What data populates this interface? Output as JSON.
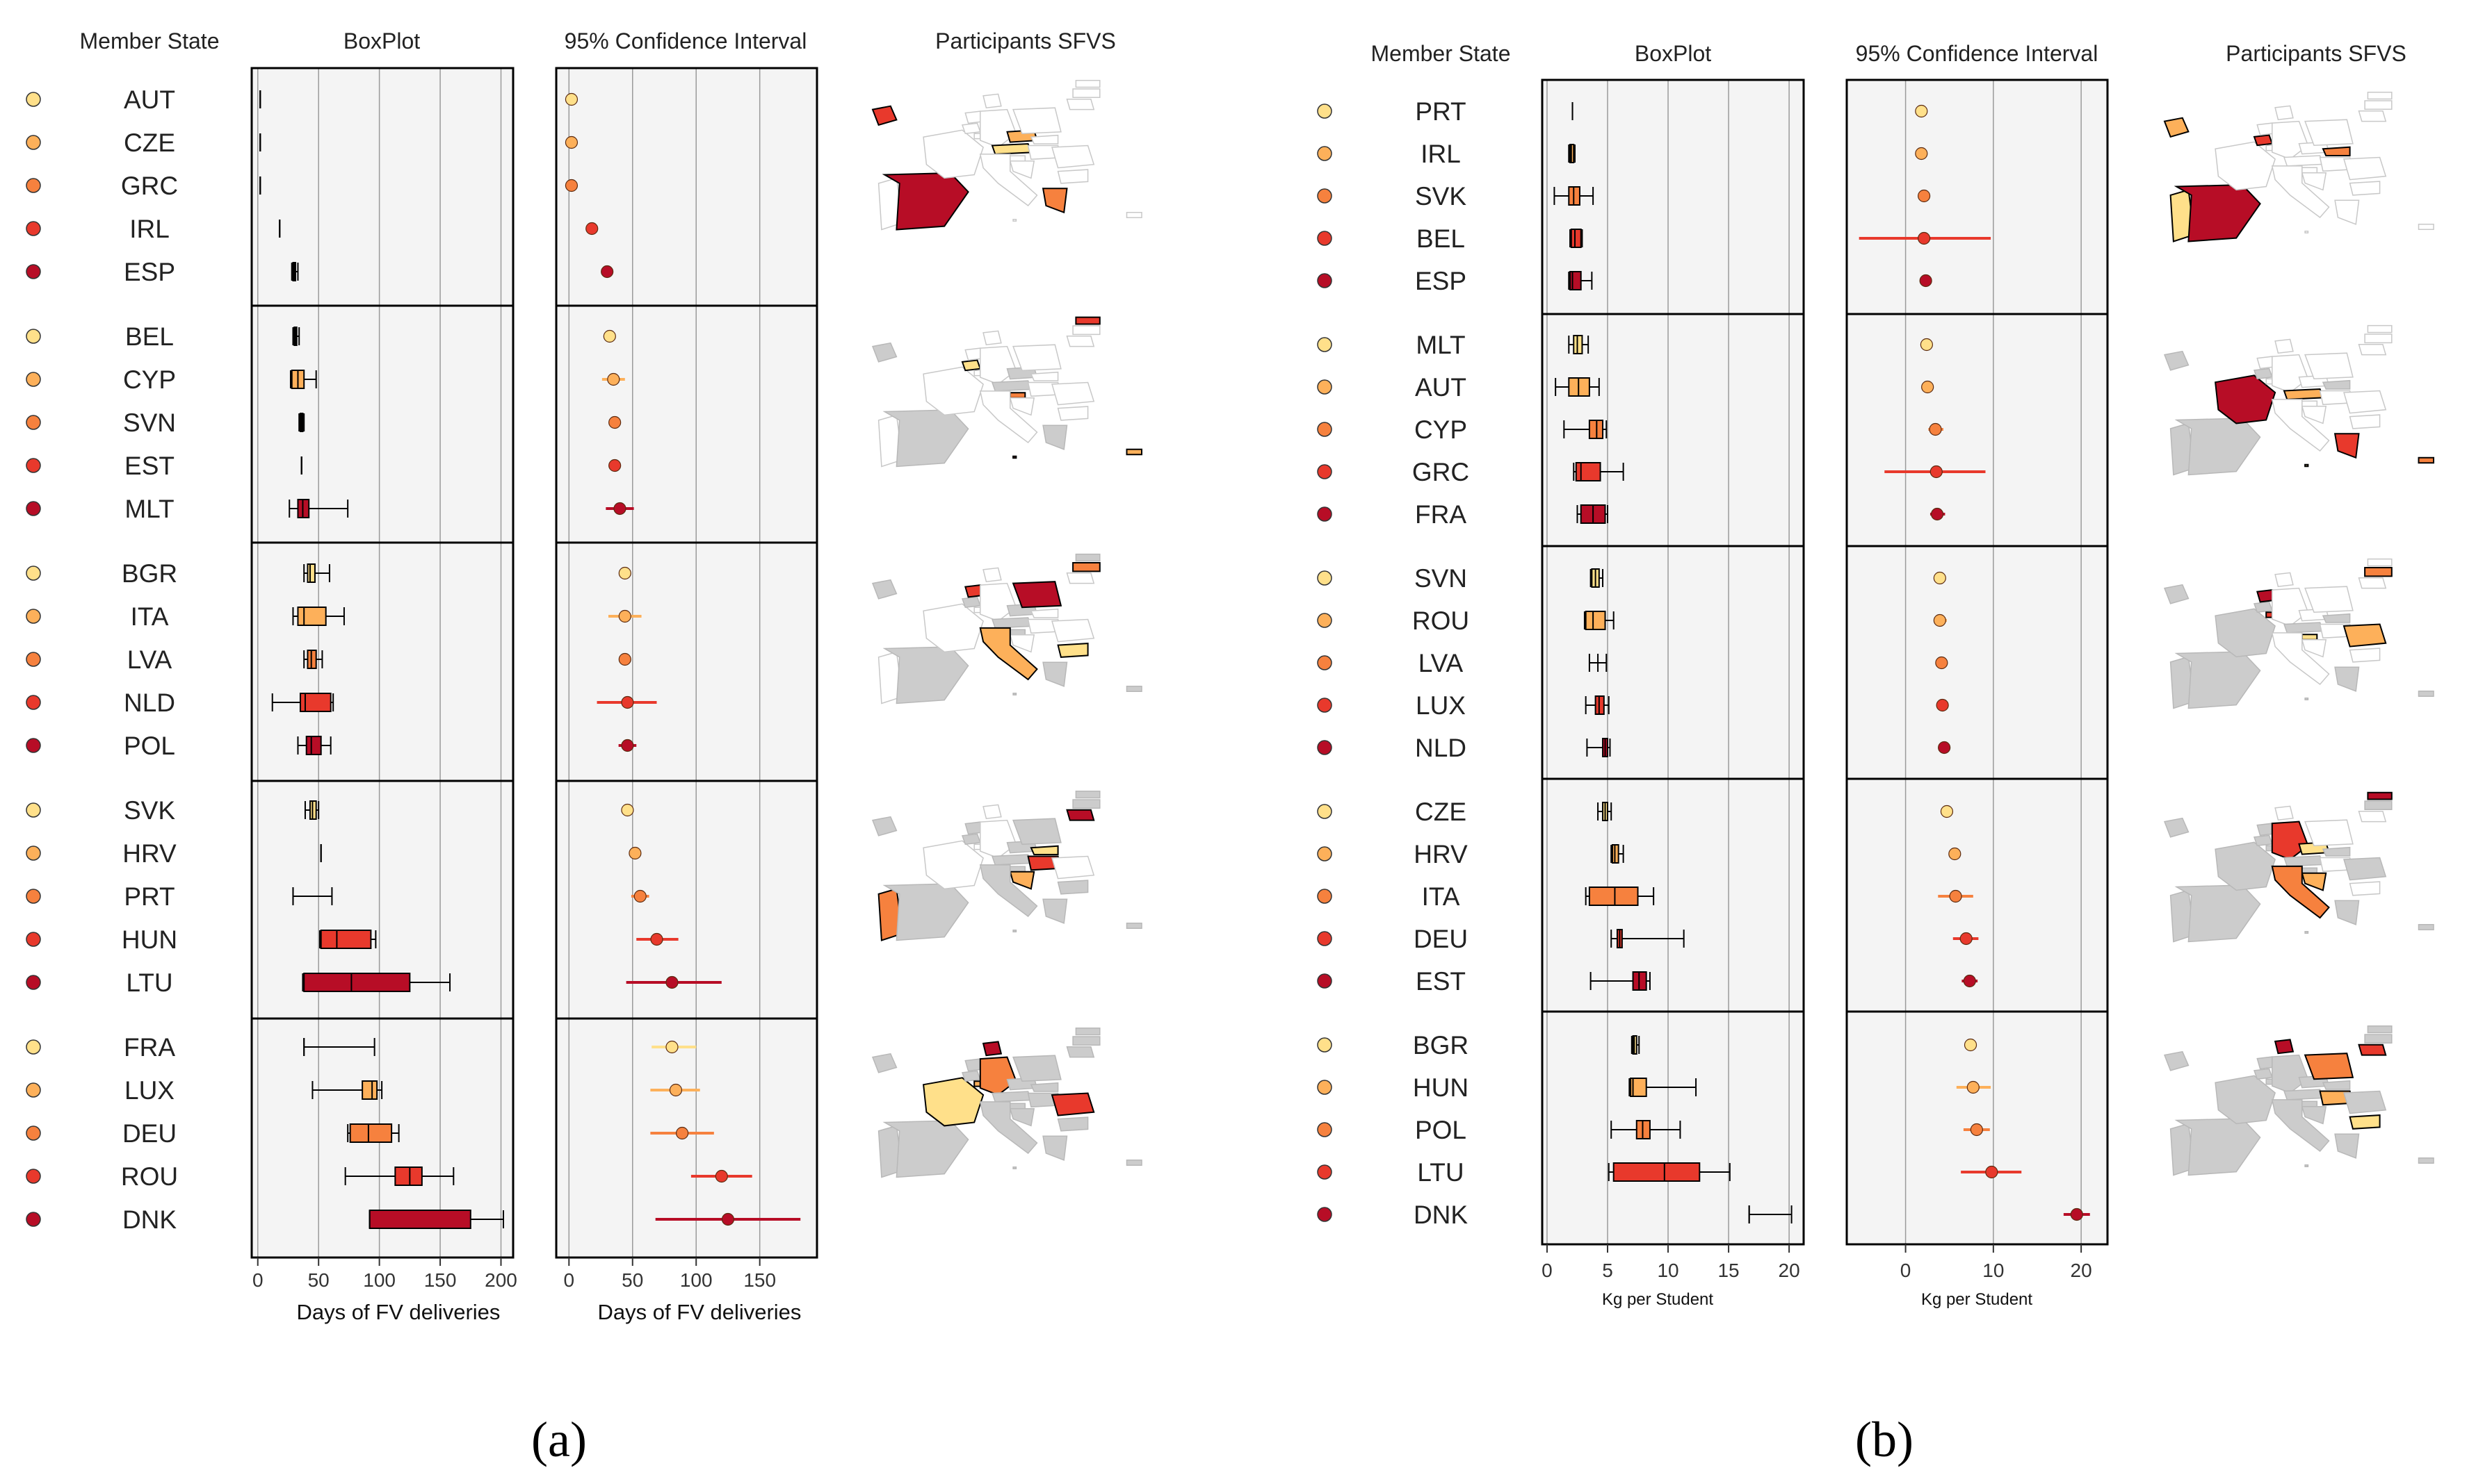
{
  "figure_labels": [
    "(a)",
    "(b)"
  ],
  "colors": {
    "ramp": [
      "#ffe08a",
      "#fdb05a",
      "#f6813e",
      "#e8392c",
      "#b70d26"
    ],
    "grey": "#cccccc",
    "panel_bg": "#f4f4f4",
    "grid": "#9a9a9a",
    "border": "#000000"
  },
  "headers": {
    "member_state": "Member State",
    "boxplot": "BoxPlot",
    "ci": "95% Confidence Interval",
    "participants": "Participants SFVS"
  },
  "chart_data": [
    {
      "type": "boxplot",
      "panel": "(a)",
      "title": "BoxPlot",
      "xlabel": "Days of FV deliveries",
      "xlim": [
        -5,
        210
      ],
      "ticks": [
        0,
        50,
        100,
        150,
        200
      ],
      "groups": [
        [
          {
            "state": "AUT",
            "min": 2,
            "q1": 2,
            "med": 2,
            "q3": 2,
            "max": 2
          },
          {
            "state": "CZE",
            "min": 2,
            "q1": 2,
            "med": 2,
            "q3": 2,
            "max": 2
          },
          {
            "state": "GRC",
            "min": 2,
            "q1": 2,
            "med": 2,
            "q3": 2,
            "max": 2
          },
          {
            "state": "IRL",
            "min": 18,
            "q1": 18,
            "med": 18,
            "q3": 18,
            "max": 18
          },
          {
            "state": "ESP",
            "min": 28,
            "q1": 29,
            "med": 30,
            "q3": 31,
            "max": 33
          }
        ],
        [
          {
            "state": "BEL",
            "min": 29,
            "q1": 30,
            "med": 31,
            "q3": 32,
            "max": 34
          },
          {
            "state": "CYP",
            "min": 27,
            "q1": 28,
            "med": 33,
            "q3": 38,
            "max": 48
          },
          {
            "state": "SVN",
            "min": 34,
            "q1": 35,
            "med": 36,
            "q3": 37,
            "max": 38
          },
          {
            "state": "EST",
            "min": 36,
            "q1": 36,
            "med": 36,
            "q3": 36,
            "max": 36
          },
          {
            "state": "MLT",
            "min": 26,
            "q1": 33,
            "med": 37,
            "q3": 42,
            "max": 74
          }
        ],
        [
          {
            "state": "BGR",
            "min": 38,
            "q1": 41,
            "med": 43,
            "q3": 47,
            "max": 59
          },
          {
            "state": "ITA",
            "min": 29,
            "q1": 33,
            "med": 38,
            "q3": 56,
            "max": 71
          },
          {
            "state": "LVA",
            "min": 38,
            "q1": 41,
            "med": 44,
            "q3": 48,
            "max": 53
          },
          {
            "state": "NLD",
            "min": 12,
            "q1": 35,
            "med": 39,
            "q3": 60,
            "max": 62
          },
          {
            "state": "POL",
            "min": 33,
            "q1": 40,
            "med": 44,
            "q3": 52,
            "max": 60
          }
        ],
        [
          {
            "state": "SVK",
            "min": 39,
            "q1": 43,
            "med": 45,
            "q3": 48,
            "max": 50
          },
          {
            "state": "HRV",
            "min": 52,
            "q1": 52,
            "med": 52,
            "q3": 52,
            "max": 52
          },
          {
            "state": "PRT",
            "min": 29,
            "q1": 29,
            "med": 29,
            "q3": 29,
            "max": 61
          },
          {
            "state": "HUN",
            "min": 51,
            "q1": 52,
            "med": 65,
            "q3": 93,
            "max": 97
          },
          {
            "state": "LTU",
            "min": 37,
            "q1": 38,
            "med": 77,
            "q3": 125,
            "max": 158
          }
        ],
        [
          {
            "state": "FRA",
            "min": 38,
            "q1": 38,
            "med": 38,
            "q3": 38,
            "max": 96
          },
          {
            "state": "LUX",
            "min": 45,
            "q1": 86,
            "med": 94,
            "q3": 98,
            "max": 102
          },
          {
            "state": "DEU",
            "min": 74,
            "q1": 76,
            "med": 91,
            "q3": 110,
            "max": 116
          },
          {
            "state": "ROU",
            "min": 72,
            "q1": 113,
            "med": 125,
            "q3": 135,
            "max": 161
          },
          {
            "state": "DNK",
            "min": 92,
            "q1": 92,
            "med": 92,
            "q3": 175,
            "max": 202
          }
        ]
      ]
    },
    {
      "type": "forest",
      "panel": "(a)",
      "title": "95% Confidence Interval",
      "xlabel": "Days of FV deliveries",
      "xlim": [
        -10,
        195
      ],
      "ticks": [
        0,
        50,
        100,
        150
      ],
      "groups": [
        [
          {
            "state": "AUT",
            "mean": 2,
            "lo": 2,
            "hi": 2
          },
          {
            "state": "CZE",
            "mean": 2,
            "lo": 2,
            "hi": 2
          },
          {
            "state": "GRC",
            "mean": 2,
            "lo": 2,
            "hi": 2
          },
          {
            "state": "IRL",
            "mean": 18,
            "lo": 18,
            "hi": 18
          },
          {
            "state": "ESP",
            "mean": 30,
            "lo": 29,
            "hi": 31
          }
        ],
        [
          {
            "state": "BEL",
            "mean": 32,
            "lo": 30,
            "hi": 34
          },
          {
            "state": "CYP",
            "mean": 35,
            "lo": 26,
            "hi": 44
          },
          {
            "state": "SVN",
            "mean": 36,
            "lo": 35,
            "hi": 37
          },
          {
            "state": "EST",
            "mean": 36,
            "lo": 35,
            "hi": 37
          },
          {
            "state": "MLT",
            "mean": 40,
            "lo": 29,
            "hi": 51
          }
        ],
        [
          {
            "state": "BGR",
            "mean": 44,
            "lo": 40,
            "hi": 48
          },
          {
            "state": "ITA",
            "mean": 44,
            "lo": 31,
            "hi": 57
          },
          {
            "state": "LVA",
            "mean": 44,
            "lo": 41,
            "hi": 47
          },
          {
            "state": "NLD",
            "mean": 46,
            "lo": 22,
            "hi": 69
          },
          {
            "state": "POL",
            "mean": 46,
            "lo": 39,
            "hi": 53
          }
        ],
        [
          {
            "state": "SVK",
            "mean": 46,
            "lo": 43,
            "hi": 50
          },
          {
            "state": "HRV",
            "mean": 52,
            "lo": 51,
            "hi": 53
          },
          {
            "state": "PRT",
            "mean": 56,
            "lo": 49,
            "hi": 63
          },
          {
            "state": "HUN",
            "mean": 69,
            "lo": 53,
            "hi": 86
          },
          {
            "state": "LTU",
            "mean": 81,
            "lo": 45,
            "hi": 120
          }
        ],
        [
          {
            "state": "FRA",
            "mean": 81,
            "lo": 65,
            "hi": 100
          },
          {
            "state": "LUX",
            "mean": 84,
            "lo": 64,
            "hi": 103
          },
          {
            "state": "DEU",
            "mean": 89,
            "lo": 64,
            "hi": 114
          },
          {
            "state": "ROU",
            "mean": 120,
            "lo": 96,
            "hi": 144
          },
          {
            "state": "DNK",
            "mean": 125,
            "lo": 68,
            "hi": 182
          }
        ]
      ]
    },
    {
      "type": "boxplot",
      "panel": "(b)",
      "title": "BoxPlot",
      "xlabel": "Kg per Student",
      "xlim": [
        -0.4,
        21.2
      ],
      "ticks": [
        0,
        5,
        10,
        15,
        20
      ],
      "groups": [
        [
          {
            "state": "PRT",
            "min": 2.1,
            "q1": 2.1,
            "med": 2.1,
            "q3": 2.1,
            "max": 2.1
          },
          {
            "state": "IRL",
            "min": 1.8,
            "q1": 1.9,
            "med": 2.0,
            "q3": 2.2,
            "max": 2.3
          },
          {
            "state": "SVK",
            "min": 0.6,
            "q1": 1.8,
            "med": 2.2,
            "q3": 2.7,
            "max": 3.8
          },
          {
            "state": "BEL",
            "min": 1.9,
            "q1": 2.0,
            "med": 2.3,
            "q3": 2.8,
            "max": 2.9
          },
          {
            "state": "ESP",
            "min": 1.8,
            "q1": 1.9,
            "med": 2.1,
            "q3": 2.8,
            "max": 3.7
          }
        ],
        [
          {
            "state": "MLT",
            "min": 1.8,
            "q1": 2.2,
            "med": 2.5,
            "q3": 2.9,
            "max": 3.4
          },
          {
            "state": "AUT",
            "min": 0.7,
            "q1": 1.8,
            "med": 2.6,
            "q3": 3.5,
            "max": 4.3
          },
          {
            "state": "CYP",
            "min": 1.4,
            "q1": 3.5,
            "med": 4.1,
            "q3": 4.6,
            "max": 4.9
          },
          {
            "state": "GRC",
            "min": 2.2,
            "q1": 2.4,
            "med": 2.8,
            "q3": 4.4,
            "max": 6.3
          },
          {
            "state": "FRA",
            "min": 2.5,
            "q1": 2.8,
            "med": 3.8,
            "q3": 4.8,
            "max": 5.0
          }
        ],
        [
          {
            "state": "SVN",
            "min": 3.6,
            "q1": 3.7,
            "med": 4.0,
            "q3": 4.3,
            "max": 4.6
          },
          {
            "state": "ROU",
            "min": 3.1,
            "q1": 3.2,
            "med": 3.8,
            "q3": 4.8,
            "max": 5.5
          },
          {
            "state": "LVA",
            "min": 3.5,
            "q1": 4.2,
            "med": 4.2,
            "q3": 4.2,
            "max": 4.9
          },
          {
            "state": "LUX",
            "min": 3.2,
            "q1": 4.0,
            "med": 4.3,
            "q3": 4.7,
            "max": 5.1
          },
          {
            "state": "NLD",
            "min": 3.3,
            "q1": 4.6,
            "med": 4.8,
            "q3": 5.0,
            "max": 5.2
          }
        ],
        [
          {
            "state": "CZE",
            "min": 4.2,
            "q1": 4.6,
            "med": 4.8,
            "q3": 5.0,
            "max": 5.3
          },
          {
            "state": "HRV",
            "min": 5.3,
            "q1": 5.4,
            "med": 5.6,
            "q3": 5.9,
            "max": 6.3
          },
          {
            "state": "ITA",
            "min": 3.2,
            "q1": 3.5,
            "med": 5.6,
            "q3": 7.5,
            "max": 8.8
          },
          {
            "state": "DEU",
            "min": 5.3,
            "q1": 5.8,
            "med": 6.0,
            "q3": 6.2,
            "max": 11.3
          },
          {
            "state": "EST",
            "min": 3.6,
            "q1": 7.1,
            "med": 7.6,
            "q3": 8.2,
            "max": 8.5
          }
        ],
        [
          {
            "state": "BGR",
            "min": 7.0,
            "q1": 7.1,
            "med": 7.2,
            "q3": 7.4,
            "max": 7.6
          },
          {
            "state": "HUN",
            "min": 6.8,
            "q1": 6.9,
            "med": 7.1,
            "q3": 8.2,
            "max": 12.3
          },
          {
            "state": "POL",
            "min": 5.3,
            "q1": 7.4,
            "med": 7.9,
            "q3": 8.5,
            "max": 11.0
          },
          {
            "state": "LTU",
            "min": 5.1,
            "q1": 5.5,
            "med": 9.7,
            "q3": 12.6,
            "max": 15.1
          },
          {
            "state": "DNK",
            "min": 16.7,
            "q1": 16.7,
            "med": 16.7,
            "q3": 16.7,
            "max": 20.2
          }
        ]
      ]
    },
    {
      "type": "forest",
      "panel": "(b)",
      "title": "95% Confidence Interval",
      "xlabel": "Kg per Student",
      "xlim": [
        -6.7,
        23.0
      ],
      "ticks": [
        0,
        10,
        20
      ],
      "groups": [
        [
          {
            "state": "PRT",
            "mean": 1.8,
            "lo": 1.6,
            "hi": 2.0
          },
          {
            "state": "IRL",
            "mean": 1.8,
            "lo": 1.6,
            "hi": 2.0
          },
          {
            "state": "SVK",
            "mean": 2.1,
            "lo": 1.8,
            "hi": 2.4
          },
          {
            "state": "BEL",
            "mean": 2.1,
            "lo": -5.3,
            "hi": 9.7
          },
          {
            "state": "ESP",
            "mean": 2.3,
            "lo": 2.0,
            "hi": 2.6
          }
        ],
        [
          {
            "state": "MLT",
            "mean": 2.4,
            "lo": 2.1,
            "hi": 2.7
          },
          {
            "state": "AUT",
            "mean": 2.5,
            "lo": 2.0,
            "hi": 3.0
          },
          {
            "state": "CYP",
            "mean": 3.4,
            "lo": 2.6,
            "hi": 4.3
          },
          {
            "state": "GRC",
            "mean": 3.5,
            "lo": -2.4,
            "hi": 9.1
          },
          {
            "state": "FRA",
            "mean": 3.6,
            "lo": 2.8,
            "hi": 4.5
          }
        ],
        [
          {
            "state": "SVN",
            "mean": 3.9,
            "lo": 3.5,
            "hi": 4.3
          },
          {
            "state": "ROU",
            "mean": 3.9,
            "lo": 3.2,
            "hi": 4.7
          },
          {
            "state": "LVA",
            "mean": 4.1,
            "lo": 3.7,
            "hi": 4.5
          },
          {
            "state": "LUX",
            "mean": 4.2,
            "lo": 3.8,
            "hi": 4.6
          },
          {
            "state": "NLD",
            "mean": 4.4,
            "lo": 4.0,
            "hi": 4.8
          }
        ],
        [
          {
            "state": "CZE",
            "mean": 4.7,
            "lo": 4.3,
            "hi": 5.1
          },
          {
            "state": "HRV",
            "mean": 5.6,
            "lo": 5.1,
            "hi": 6.1
          },
          {
            "state": "ITA",
            "mean": 5.7,
            "lo": 3.7,
            "hi": 7.7
          },
          {
            "state": "DEU",
            "mean": 6.9,
            "lo": 5.4,
            "hi": 8.3
          },
          {
            "state": "EST",
            "mean": 7.3,
            "lo": 6.4,
            "hi": 8.2
          }
        ],
        [
          {
            "state": "BGR",
            "mean": 7.4,
            "lo": 6.9,
            "hi": 7.9
          },
          {
            "state": "HUN",
            "mean": 7.7,
            "lo": 5.8,
            "hi": 9.7
          },
          {
            "state": "POL",
            "mean": 8.1,
            "lo": 6.6,
            "hi": 9.6
          },
          {
            "state": "LTU",
            "mean": 9.8,
            "lo": 6.3,
            "hi": 13.2
          },
          {
            "state": "DNK",
            "mean": 19.5,
            "lo": 18.0,
            "hi": 21.0
          }
        ]
      ]
    }
  ]
}
